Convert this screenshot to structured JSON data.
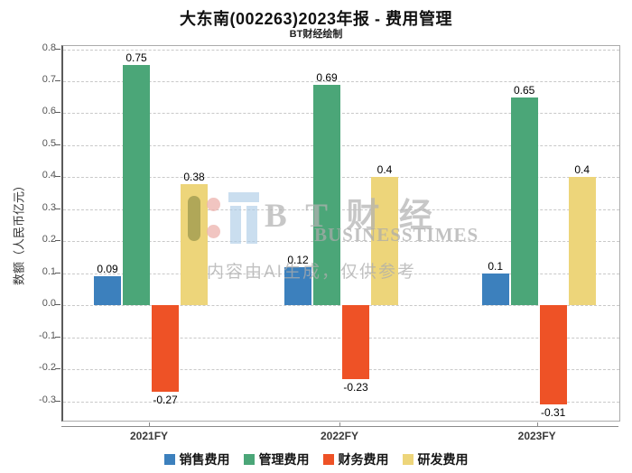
{
  "header": {
    "title": "大东南(002263)2023年报 - 费用管理",
    "subtitle": "BT财经绘制"
  },
  "chart_data": {
    "type": "bar",
    "categories": [
      "2021FY",
      "2022FY",
      "2023FY"
    ],
    "series": [
      {
        "name": "销售费用",
        "color": "#3C80BD",
        "values": [
          0.09,
          0.12,
          0.1
        ]
      },
      {
        "name": "管理费用",
        "color": "#4BA678",
        "values": [
          0.75,
          0.69,
          0.65
        ]
      },
      {
        "name": "财务费用",
        "color": "#EE5226",
        "values": [
          -0.27,
          -0.23,
          -0.31
        ]
      },
      {
        "name": "研发费用",
        "color": "#EDD57A",
        "values": [
          0.38,
          0.4,
          0.4
        ]
      }
    ],
    "title": "大东南(002263)2023年报 - 费用管理",
    "xlabel": "",
    "ylabel": "数额（人民币亿元）",
    "ylim": [
      -0.36,
      0.81
    ],
    "yticks": [
      0.8,
      0.7,
      0.6,
      0.5,
      0.4,
      0.3,
      0.2,
      0.1,
      0.0,
      -0.1,
      -0.2,
      -0.3
    ],
    "grid": true,
    "legend_position": "bottom"
  },
  "watermark": {
    "logo_text": "B T 财 经",
    "sub_text": "BUSINESSTIMES",
    "ai_note": "内容由AI生成，仅供参考"
  }
}
